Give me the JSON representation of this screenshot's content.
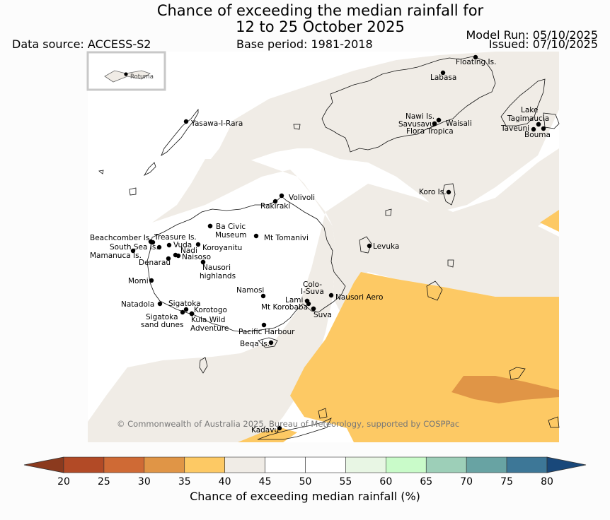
{
  "title_line1": "Chance of exceeding the median rainfall for",
  "title_line2": "12 to 25 October 2025",
  "data_source": "Data source: ACCESS-S2",
  "base_period": "Base period: 1981-2018",
  "model_run": "Model Run: 05/10/2025",
  "issued": "Issued: 07/10/2025",
  "inset_label": "Rotuma",
  "copyright": "© Commonwealth of Australia 2025, Bureau of Meteorology, supported by COSPPac",
  "colorbar": {
    "title": "Chance of exceeding median rainfall (%)",
    "ticks": [
      "20",
      "25",
      "30",
      "35",
      "40",
      "45",
      "50",
      "55",
      "60",
      "65",
      "70",
      "75",
      "80"
    ],
    "colors": [
      "#8b3a1e",
      "#b24a26",
      "#cf6a35",
      "#e09546",
      "#fdc964",
      "#f0ece6",
      "#ffffff",
      "#ffffff",
      "#e8f6e4",
      "#c9fbc9",
      "#9dcfb8",
      "#68a3a3",
      "#3d7797",
      "#19487a"
    ]
  },
  "legend_bins": {
    "below_35_dark": "#e09546",
    "35_40": "#fdc964",
    "40_45": "#f0ece6",
    "45_55": "#ffffff"
  },
  "places": [
    {
      "name": "Floating Is."
    },
    {
      "name": "Labasa"
    },
    {
      "name": "Yasawa-I-Rara"
    },
    {
      "name": "Nawi Is."
    },
    {
      "name": "Savusavu"
    },
    {
      "name": "Waisali"
    },
    {
      "name": "Flora Tropica"
    },
    {
      "name": "Lake"
    },
    {
      "name": "Tagimaucia"
    },
    {
      "name": "Taveuni"
    },
    {
      "name": "Bouma"
    },
    {
      "name": "Koro Is."
    },
    {
      "name": "Volivoli"
    },
    {
      "name": "Rakiraki"
    },
    {
      "name": "Ba Civic"
    },
    {
      "name": "Museum"
    },
    {
      "name": "Mt Tomanivi"
    },
    {
      "name": "Beachcomber Is."
    },
    {
      "name": "Treasure Is."
    },
    {
      "name": "South Sea Is."
    },
    {
      "name": "Vuda"
    },
    {
      "name": "Koroyanitu"
    },
    {
      "name": "Mamanuca Is."
    },
    {
      "name": "Nadi"
    },
    {
      "name": "Naisoso"
    },
    {
      "name": "Denarau"
    },
    {
      "name": "Nausori"
    },
    {
      "name": "highlands"
    },
    {
      "name": "Levuka"
    },
    {
      "name": "Momi"
    },
    {
      "name": "Namosi"
    },
    {
      "name": "Colo-"
    },
    {
      "name": "I-Suva"
    },
    {
      "name": "Nausori Aero"
    },
    {
      "name": "Lami"
    },
    {
      "name": "Mt Korobaba"
    },
    {
      "name": "Suva"
    },
    {
      "name": "Natadola"
    },
    {
      "name": "Sigatoka"
    },
    {
      "name": "Korotogo"
    },
    {
      "name": "Sigatoka"
    },
    {
      "name": "sand dunes"
    },
    {
      "name": "Kula Wild"
    },
    {
      "name": "Adventure"
    },
    {
      "name": "Pacific Harbour"
    },
    {
      "name": "Beqa Is."
    },
    {
      "name": "Kadavu"
    }
  ]
}
